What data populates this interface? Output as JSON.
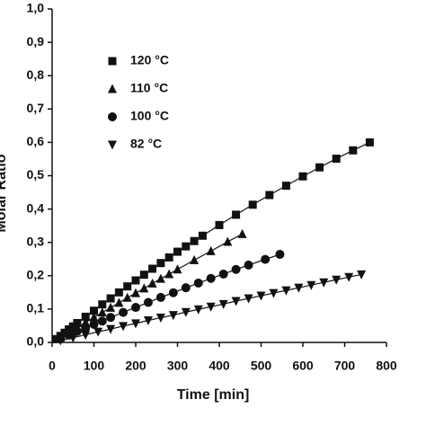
{
  "chart_data": {
    "type": "scatter",
    "xlabel": "Time [min]",
    "ylabel": "Molar Ratio",
    "xlim": [
      0,
      800
    ],
    "xticks": [
      0,
      100,
      200,
      300,
      400,
      500,
      600,
      700,
      800
    ],
    "ylim": [
      0,
      1.0
    ],
    "yticks": [
      {
        "value": 0,
        "label": "0,0"
      },
      {
        "value": 0.1,
        "label": "0,1"
      },
      {
        "value": 0.2,
        "label": "0,2"
      },
      {
        "value": 0.3,
        "label": "0,3"
      },
      {
        "value": 0.4,
        "label": "0,4"
      },
      {
        "value": 0.5,
        "label": "0,5"
      },
      {
        "value": 0.6,
        "label": "0,6"
      },
      {
        "value": 0.7,
        "label": "0,7"
      },
      {
        "value": 0.8,
        "label": "0,8"
      },
      {
        "value": 0.9,
        "label": "0,9"
      },
      {
        "value": 1.0,
        "label": "1,0"
      }
    ],
    "series": [
      {
        "name": "120 °C",
        "marker": "square",
        "color": "#111111",
        "x": [
          10,
          20,
          30,
          40,
          50,
          60,
          80,
          100,
          120,
          140,
          160,
          180,
          200,
          220,
          240,
          260,
          280,
          300,
          320,
          340,
          360,
          400,
          440,
          480,
          520,
          560,
          600,
          640,
          680,
          720,
          760
        ],
        "values": [
          0.01,
          0.0195,
          0.029,
          0.039,
          0.048,
          0.058,
          0.077,
          0.095,
          0.114,
          0.132,
          0.15,
          0.168,
          0.186,
          0.203,
          0.221,
          0.238,
          0.255,
          0.272,
          0.288,
          0.304,
          0.32,
          0.352,
          0.383,
          0.413,
          0.442,
          0.47,
          0.498,
          0.525,
          0.551,
          0.576,
          0.6
        ]
      },
      {
        "name": "110 °C",
        "marker": "triangle",
        "color": "#111111",
        "x": [
          20,
          40,
          60,
          80,
          100,
          120,
          140,
          160,
          180,
          200,
          220,
          240,
          260,
          280,
          300,
          340,
          380,
          420,
          455
        ],
        "values": [
          0.015,
          0.03,
          0.045,
          0.06,
          0.075,
          0.09,
          0.104,
          0.119,
          0.134,
          0.148,
          0.162,
          0.177,
          0.191,
          0.205,
          0.219,
          0.247,
          0.274,
          0.302,
          0.325
        ]
      },
      {
        "name": "100 °C",
        "marker": "circle",
        "color": "#111111",
        "x": [
          20,
          40,
          60,
          80,
          100,
          120,
          140,
          170,
          200,
          230,
          260,
          290,
          320,
          350,
          380,
          410,
          440,
          470,
          510,
          545
        ],
        "values": [
          0.011,
          0.022,
          0.033,
          0.043,
          0.054,
          0.064,
          0.075,
          0.09,
          0.105,
          0.12,
          0.135,
          0.149,
          0.164,
          0.178,
          0.192,
          0.205,
          0.219,
          0.232,
          0.249,
          0.264
        ]
      },
      {
        "name": "82 °C",
        "marker": "triangle-down",
        "color": "#111111",
        "x": [
          20,
          50,
          80,
          110,
          140,
          170,
          200,
          230,
          260,
          290,
          320,
          350,
          380,
          410,
          440,
          470,
          500,
          530,
          560,
          590,
          620,
          650,
          680,
          710,
          740
        ],
        "values": [
          0.006,
          0.014,
          0.023,
          0.032,
          0.04,
          0.049,
          0.057,
          0.066,
          0.074,
          0.082,
          0.091,
          0.099,
          0.107,
          0.115,
          0.124,
          0.132,
          0.14,
          0.148,
          0.156,
          0.164,
          0.172,
          0.18,
          0.188,
          0.196,
          0.204
        ]
      }
    ]
  }
}
